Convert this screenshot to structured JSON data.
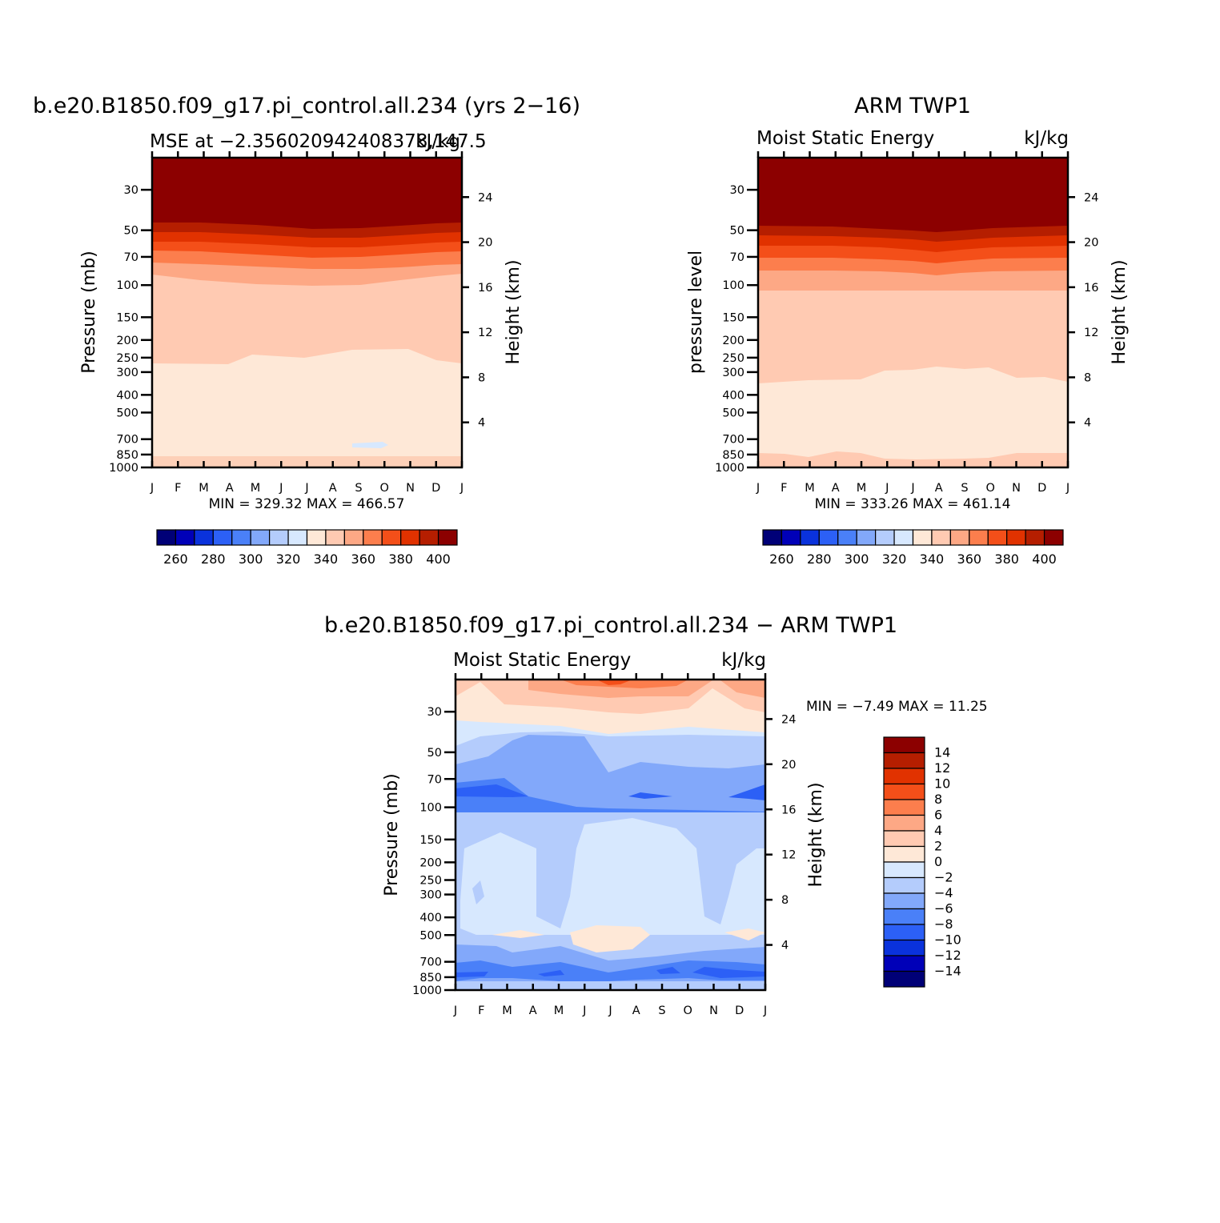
{
  "chart_data": [
    {
      "type": "heatmap",
      "title": "b.e20.B1850.f09_g17.pi_control.all.234 (yrs 2−16)",
      "subtitle": "MSE at −2.356020942408378,147.5",
      "units": "kJ/kg",
      "xlabel": "",
      "ylabel": "Pressure (mb)",
      "ylabel_right": "Height (km)",
      "x_ticklabels": [
        "J",
        "F",
        "M",
        "A",
        "M",
        "J",
        "J",
        "A",
        "S",
        "O",
        "N",
        "D",
        "J"
      ],
      "pressure_ticks": [
        30,
        50,
        70,
        100,
        150,
        200,
        250,
        300,
        400,
        500,
        700,
        850,
        1000
      ],
      "height_ticks": [
        24,
        20,
        16,
        12,
        8,
        4
      ],
      "ylim": [
        1000,
        20
      ],
      "min_max_text": "MIN = 329.32 MAX = 466.57",
      "colorbar": {
        "colors": [
          "#000077",
          "#0000b8",
          "#0a32dc",
          "#2c60f6",
          "#4a80f8",
          "#82a8fa",
          "#b4ccfc",
          "#d7e8fe",
          "#fee8d7",
          "#ffcab2",
          "#fda885",
          "#fc7e4d",
          "#f44f19",
          "#e13200",
          "#b51e00",
          "#8c0000"
        ],
        "labels": [
          "260",
          "280",
          "300",
          "320",
          "340",
          "360",
          "380",
          "400"
        ]
      },
      "contour_boundaries": [
        {
          "level": 340,
          "pressure": [
            300,
            300,
            302,
            300,
            285,
            280,
            283,
            280,
            265,
            262,
            262,
            285,
            300
          ]
        },
        {
          "level": 360,
          "pressure": [
            98,
            98,
            103,
            104,
            107,
            110,
            113,
            112,
            112,
            108,
            103,
            99,
            96
          ]
        },
        {
          "level": 370,
          "pressure": [
            86,
            86,
            87,
            89,
            90,
            92,
            94,
            94,
            94,
            93,
            91,
            89,
            88
          ]
        },
        {
          "level": 380,
          "pressure": [
            77,
            77,
            77,
            78,
            80,
            82,
            85,
            85,
            85,
            84,
            82,
            80,
            79
          ]
        },
        {
          "level": 390,
          "pressure": [
            68,
            68,
            68,
            68,
            70,
            72,
            75,
            75,
            75,
            74,
            72,
            70,
            69
          ]
        },
        {
          "level": 400,
          "pressure": [
            60,
            60,
            60,
            61,
            62,
            63,
            66,
            66,
            66,
            65,
            63,
            61,
            60
          ]
        }
      ]
    },
    {
      "type": "heatmap",
      "title": "ARM TWP1",
      "subtitle": "Moist Static Energy",
      "units": "kJ/kg",
      "xlabel": "",
      "ylabel": "pressure level",
      "ylabel_right": "Height (km)",
      "x_ticklabels": [
        "J",
        "F",
        "M",
        "A",
        "M",
        "J",
        "J",
        "A",
        "S",
        "O",
        "N",
        "D",
        "J"
      ],
      "pressure_ticks": [
        30,
        50,
        70,
        100,
        150,
        200,
        250,
        300,
        400,
        500,
        700,
        850,
        1000
      ],
      "height_ticks": [
        24,
        20,
        16,
        12,
        8,
        4
      ],
      "ylim": [
        1000,
        20
      ],
      "min_max_text": "MIN = 333.26 MAX = 461.14",
      "colorbar": {
        "colors": [
          "#000077",
          "#0000b8",
          "#0a32dc",
          "#2c60f6",
          "#4a80f8",
          "#82a8fa",
          "#b4ccfc",
          "#d7e8fe",
          "#fee8d7",
          "#ffcab2",
          "#fda885",
          "#fc7e4d",
          "#f44f19",
          "#e13200",
          "#b51e00",
          "#8c0000"
        ],
        "labels": [
          "260",
          "280",
          "300",
          "320",
          "340",
          "360",
          "380",
          "400"
        ]
      },
      "contour_boundaries": [
        {
          "level": 340,
          "pressure": [
            850,
            850,
            865,
            858,
            830,
            845,
            880,
            880,
            880,
            880,
            880,
            845,
            845
          ]
        },
        {
          "level": 350,
          "pressure": [
            375,
            375,
            370,
            365,
            365,
            365,
            345,
            330,
            320,
            320,
            330,
            375,
            375
          ]
        },
        {
          "level": 360,
          "pressure": [
            125,
            125,
            125,
            125,
            125,
            125,
            125,
            125,
            125,
            125,
            125,
            125,
            125
          ]
        },
        {
          "level": 370,
          "pressure": [
            97,
            97,
            97,
            97,
            97,
            98,
            100,
            100,
            100,
            98,
            97,
            97,
            97
          ]
        },
        {
          "level": 380,
          "pressure": [
            85,
            85,
            85,
            86,
            87,
            88,
            90,
            92,
            90,
            88,
            87,
            86,
            85
          ]
        },
        {
          "level": 390,
          "pressure": [
            72,
            72,
            72,
            73,
            74,
            75,
            77,
            78,
            77,
            76,
            74,
            73,
            72
          ]
        },
        {
          "level": 400,
          "pressure": [
            62,
            62,
            62,
            62,
            63,
            64,
            65,
            65,
            65,
            64,
            63,
            62,
            62
          ]
        }
      ]
    },
    {
      "type": "heatmap",
      "title": "b.e20.B1850.f09_g17.pi_control.all.234 − ARM TWP1",
      "subtitle": "Moist Static Energy",
      "units": "kJ/kg",
      "xlabel": "",
      "ylabel": "Pressure (mb)",
      "ylabel_right": "Height (km)",
      "x_ticklabels": [
        "J",
        "F",
        "M",
        "A",
        "M",
        "J",
        "J",
        "A",
        "S",
        "O",
        "N",
        "D",
        "J"
      ],
      "pressure_ticks": [
        30,
        50,
        70,
        100,
        150,
        200,
        250,
        300,
        400,
        500,
        700,
        850,
        1000
      ],
      "height_ticks": [
        24,
        20,
        16,
        12,
        8,
        4
      ],
      "ylim": [
        1000,
        20
      ],
      "min_max_text": "MIN =   −7.49 MAX =   11.25",
      "colorbar": {
        "colors": [
          "#000077",
          "#0000b8",
          "#0a32dc",
          "#2c60f6",
          "#4a80f8",
          "#82a8fa",
          "#b4ccfc",
          "#d7e8fe",
          "#fee8d7",
          "#ffcab2",
          "#fda885",
          "#fc7e4d",
          "#f44f19",
          "#e13200",
          "#b51e00",
          "#8c0000"
        ],
        "labels": [
          "14",
          "12",
          "10",
          "8",
          "6",
          "4",
          "2",
          "0",
          "−2",
          "−4",
          "−6",
          "−8",
          "−10",
          "−12",
          "−14"
        ]
      },
      "contour_boundaries": [
        {
          "level": 0,
          "pressure": [
            42,
            38,
            40,
            40,
            40,
            42,
            44,
            42,
            40,
            40,
            40,
            40,
            42
          ]
        },
        {
          "level": -2,
          "pressure": [
            55,
            50,
            48,
            46,
            47,
            49,
            55,
            52,
            52,
            52,
            52,
            52,
            56
          ]
        },
        {
          "level": -4,
          "pressure": [
            72,
            68,
            65,
            60,
            60,
            62,
            72,
            66,
            65,
            66,
            70,
            70,
            75
          ]
        },
        {
          "level": -6,
          "pressure": [
            88,
            86,
            85,
            84,
            90,
            95,
            96,
            94,
            95,
            95,
            96,
            98,
            98
          ]
        },
        {
          "level": -2.5,
          "pressure": [
            125,
            125,
            125,
            125,
            125,
            125,
            125,
            125,
            125,
            125,
            125,
            125,
            125
          ]
        }
      ]
    }
  ]
}
